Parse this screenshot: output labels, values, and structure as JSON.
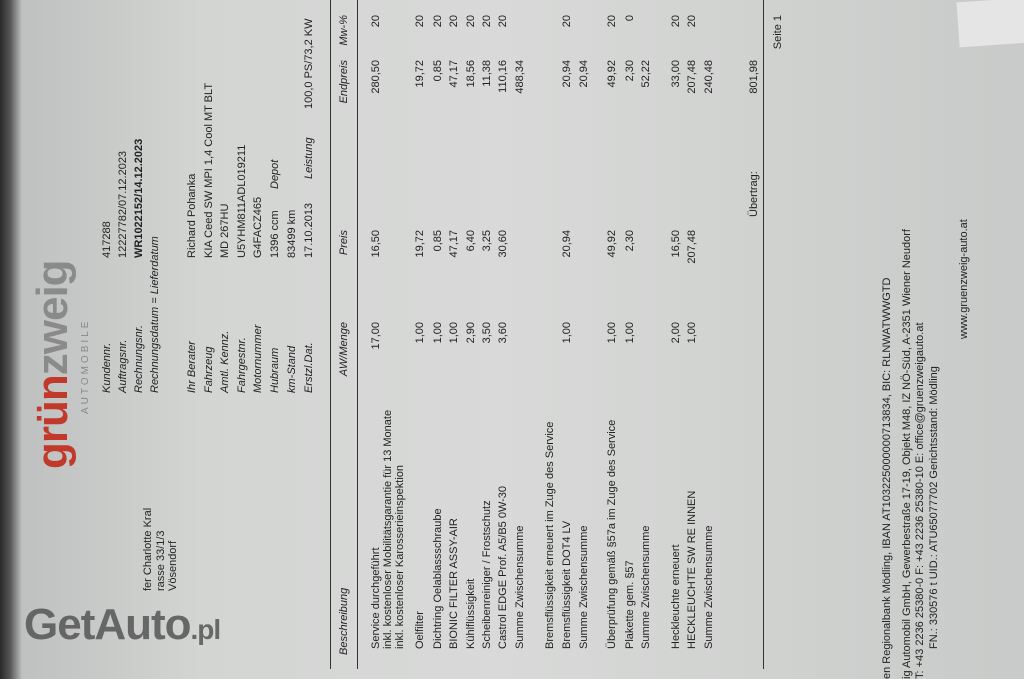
{
  "logo": {
    "brand_a": "grün",
    "brand_b": "zweig",
    "sub": "AUTOMOBILE"
  },
  "recipient": [
    "fer Charlotte Kral",
    "rasse 33/1/3",
    "Vösendorf"
  ],
  "header_info": [
    {
      "label": "Kundennr.",
      "value": "417288"
    },
    {
      "label": "Auftragsnr.",
      "value": "12227782/07.12.2023"
    },
    {
      "label": "Rechnungsnr.",
      "value": "WR1022152/14.12.2023"
    },
    {
      "label": "Rechnungsdatum = Lieferdatum",
      "value": ""
    }
  ],
  "vehicle_info": [
    {
      "label": "Ihr Berater",
      "value": "Richard Pohanka"
    },
    {
      "label": "Fahrzeug",
      "value": "KIA Ceed SW MPI 1,4 Cool MT BLT"
    },
    {
      "label": "Amtl. Kennz.",
      "value": "MD 267HU"
    },
    {
      "label": "Fahrgestnr.",
      "value": "U5YHM811ADL019211"
    },
    {
      "label": "Motornummer",
      "value": "G4FACZ465"
    },
    {
      "label": "Hubraum",
      "value": "1396 ccm",
      "extra": "Depot"
    },
    {
      "label": "km-Stand",
      "value": "83499 km"
    },
    {
      "label": "Erstzl.Dat.",
      "value": "17.10.2013",
      "extra": "Leistung",
      "extra2": "100,0 PS/73,2 KW"
    }
  ],
  "table": {
    "headers": {
      "desc": "Beschreibung",
      "qty": "AW/Menge",
      "price": "Preis",
      "total": "Endpreis",
      "vat": "Mw-%"
    },
    "rows": [
      {
        "desc": "Service durchgeführt",
        "qty": "17,00",
        "price": "16,50",
        "total": "280,50",
        "vat": "20"
      },
      {
        "desc": "inkl. kostenloser Mobilitätsgarantie für 13 Monate"
      },
      {
        "desc": "inkl. kostenloser Karosserieinspektion"
      },
      {
        "desc": "Oelfilter",
        "qty": "1,00",
        "price": "19,72",
        "total": "19,72",
        "vat": "20"
      },
      {
        "desc": "Dichtring Oelablassschraube",
        "qty": "1,00",
        "price": "0,85",
        "total": "0,85",
        "vat": "20"
      },
      {
        "desc": "BIONIC FILTER ASSY-AIR",
        "qty": "1,00",
        "price": "47,17",
        "total": "47,17",
        "vat": "20"
      },
      {
        "desc": "Kühlflüssigkeit",
        "qty": "2,90",
        "price": "6,40",
        "total": "18,56",
        "vat": "20"
      },
      {
        "desc": "Scheibenreiniger / Frostschutz",
        "qty": "3,50",
        "price": "3,25",
        "total": "11,38",
        "vat": "20"
      },
      {
        "desc": "Castrol EDGE Prof. A5/B5 0W-30",
        "qty": "3,60",
        "price": "30,60",
        "total": "110,16",
        "vat": "20"
      },
      {
        "desc": "Summe Zwischensumme",
        "total": "488,34"
      },
      {
        "desc": "Bremsflüssigkeit erneuert im Zuge des Service"
      },
      {
        "desc": "Bremsflüssigkeit DOT4 LV",
        "qty": "1,00",
        "price": "20,94",
        "total": "20,94",
        "vat": "20"
      },
      {
        "desc": "Summe Zwischensumme",
        "total": "20,94"
      },
      {
        "desc": "Überprüfung gemäß §57a im Zuge des Service",
        "qty": "1,00",
        "price": "49,92",
        "total": "49,92",
        "vat": "20"
      },
      {
        "desc": "Plakette gem. §57",
        "qty": "1,00",
        "price": "2,30",
        "total": "2,30",
        "vat": "0"
      },
      {
        "desc": "Summe Zwischensumme",
        "total": "52,22"
      },
      {
        "desc": "Heckleuchte erneuert",
        "qty": "2,00",
        "price": "16,50",
        "total": "33,00",
        "vat": "20"
      },
      {
        "desc": "HECKLEUCHTE SW RE INNEN",
        "qty": "1,00",
        "price": "207,48",
        "total": "207,48",
        "vat": "20"
      },
      {
        "desc": "Summe Zwischensumme",
        "total": "240,48"
      }
    ],
    "carry_label": "Übertrag:",
    "carry_value": "801,98",
    "page": "Seite 1"
  },
  "footer": [
    "en Regionalbank Mödling, IBAN AT103225000000713834, BIC:  RLNWATWWGTD",
    "ig Automobil GmbH, Gewerbestraße 17-19, Objekt M48, IZ NÖ-Süd, A-2351  Wiener Neudorf",
    "T: +43 2236 25380-0    F: +43 2236 25380-10    E: office@gruenzweigauto.at",
    "FN.: 330576 t    UID.: ATU65077702    Gerichtsstand: Mödling",
    "www.gruenzweig-auto.at"
  ],
  "watermark": {
    "main": "GetAuto",
    "tld": ".pl"
  }
}
